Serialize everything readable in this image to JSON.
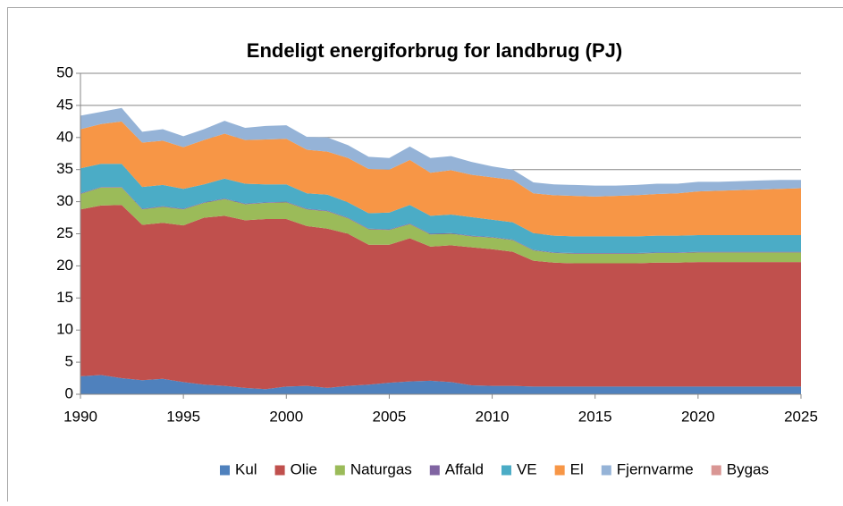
{
  "chart_data": {
    "type": "stacked_area",
    "title": "Endeligt energiforbrug for landbrug (PJ)",
    "x": [
      1990,
      1991,
      1992,
      1993,
      1994,
      1995,
      1996,
      1997,
      1998,
      1999,
      2000,
      2001,
      2002,
      2003,
      2004,
      2005,
      2006,
      2007,
      2008,
      2009,
      2010,
      2011,
      2012,
      2013,
      2014,
      2015,
      2016,
      2017,
      2018,
      2019,
      2020,
      2021,
      2022,
      2023,
      2024,
      2025
    ],
    "xlim": [
      1990,
      2025
    ],
    "xticks": [
      1990,
      1995,
      2000,
      2005,
      2010,
      2015,
      2020,
      2025
    ],
    "ylim": [
      0,
      50
    ],
    "yticks": [
      0,
      5,
      10,
      15,
      20,
      25,
      30,
      35,
      40,
      45,
      50
    ],
    "grid": true,
    "legend": "bottom",
    "series": [
      {
        "name": "Kul",
        "color": "#4f81bd",
        "values": [
          2.8,
          3.0,
          2.5,
          2.2,
          2.4,
          1.9,
          1.5,
          1.3,
          1.0,
          0.8,
          1.2,
          1.3,
          1.0,
          1.3,
          1.5,
          1.8,
          2.0,
          2.1,
          1.9,
          1.4,
          1.3,
          1.3,
          1.2,
          1.2,
          1.2,
          1.2,
          1.2,
          1.2,
          1.2,
          1.2,
          1.2,
          1.2,
          1.2,
          1.2,
          1.2,
          1.2
        ]
      },
      {
        "name": "Olie",
        "color": "#c0504d",
        "values": [
          26.0,
          26.4,
          27.0,
          24.2,
          24.3,
          24.4,
          26.0,
          26.5,
          26.1,
          26.5,
          26.1,
          24.9,
          24.8,
          23.7,
          21.8,
          21.5,
          22.3,
          20.9,
          21.3,
          21.5,
          21.3,
          20.9,
          19.6,
          19.3,
          19.2,
          19.2,
          19.2,
          19.2,
          19.3,
          19.3,
          19.4,
          19.4,
          19.4,
          19.4,
          19.4,
          19.4
        ]
      },
      {
        "name": "Naturgas",
        "color": "#9bbb59",
        "values": [
          2.4,
          2.8,
          2.7,
          2.4,
          2.5,
          2.5,
          2.3,
          2.6,
          2.5,
          2.5,
          2.6,
          2.6,
          2.7,
          2.4,
          2.4,
          2.3,
          2.2,
          1.9,
          1.8,
          1.7,
          1.8,
          1.8,
          1.6,
          1.5,
          1.5,
          1.5,
          1.5,
          1.5,
          1.5,
          1.5,
          1.5,
          1.5,
          1.5,
          1.5,
          1.5,
          1.5
        ]
      },
      {
        "name": "Affald",
        "color": "#8064a2",
        "values": [
          0.1,
          0.1,
          0.1,
          0.1,
          0.1,
          0.1,
          0.1,
          0.1,
          0.1,
          0.1,
          0.1,
          0.1,
          0.1,
          0.1,
          0.1,
          0.1,
          0.1,
          0.1,
          0.1,
          0.1,
          0.1,
          0.1,
          0.1,
          0.1,
          0.1,
          0.1,
          0.1,
          0.1,
          0.1,
          0.1,
          0.1,
          0.1,
          0.1,
          0.1,
          0.1,
          0.1
        ]
      },
      {
        "name": "VE",
        "color": "#4bacc6",
        "values": [
          3.9,
          3.6,
          3.6,
          3.4,
          3.3,
          3.1,
          2.8,
          3.1,
          3.1,
          2.8,
          2.7,
          2.4,
          2.5,
          2.4,
          2.4,
          2.6,
          2.9,
          2.8,
          2.9,
          2.9,
          2.7,
          2.7,
          2.6,
          2.6,
          2.6,
          2.6,
          2.6,
          2.6,
          2.6,
          2.6,
          2.6,
          2.6,
          2.6,
          2.6,
          2.6,
          2.6
        ]
      },
      {
        "name": "El",
        "color": "#f79646",
        "values": [
          6.1,
          6.2,
          6.6,
          6.9,
          6.9,
          6.5,
          6.9,
          7.0,
          6.8,
          7.0,
          7.1,
          6.8,
          6.7,
          6.9,
          6.9,
          6.7,
          7.0,
          6.7,
          6.9,
          6.6,
          6.6,
          6.6,
          6.2,
          6.3,
          6.3,
          6.2,
          6.3,
          6.4,
          6.5,
          6.6,
          6.8,
          6.9,
          7.0,
          7.1,
          7.2,
          7.3
        ]
      },
      {
        "name": "Fjernvarme",
        "color": "#95b3d7",
        "values": [
          2.1,
          1.9,
          2.1,
          1.7,
          1.8,
          1.7,
          1.7,
          2.0,
          1.9,
          2.1,
          2.1,
          2.0,
          2.2,
          2.0,
          1.9,
          1.8,
          2.1,
          2.3,
          2.2,
          2.0,
          1.7,
          1.6,
          1.7,
          1.7,
          1.7,
          1.7,
          1.6,
          1.6,
          1.6,
          1.5,
          1.5,
          1.4,
          1.4,
          1.4,
          1.4,
          1.3
        ]
      },
      {
        "name": "Bygas",
        "color": "#d99694",
        "values": [
          0,
          0,
          0,
          0,
          0,
          0,
          0,
          0,
          0,
          0,
          0,
          0,
          0,
          0,
          0,
          0,
          0,
          0,
          0,
          0,
          0,
          0,
          0,
          0,
          0,
          0,
          0,
          0,
          0,
          0,
          0,
          0,
          0,
          0,
          0,
          0
        ]
      }
    ]
  }
}
